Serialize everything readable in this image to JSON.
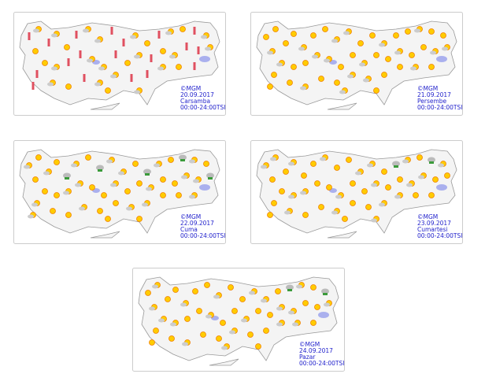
{
  "maps": [
    {
      "credit": "©MGM",
      "date": "20.09.2017",
      "day": "Carsamba",
      "hours": "00:00-24:00TSI"
    },
    {
      "credit": "©MGM",
      "date": "21.09.2017",
      "day": "Persembe",
      "hours": "00:00-24:00TSI"
    },
    {
      "credit": "©MGM",
      "date": "22.09.2017",
      "day": "Cuma",
      "hours": "00:00-24:00TSI"
    },
    {
      "credit": "©MGM",
      "date": "23.09.2017",
      "day": "Cumartesi",
      "hours": "00:00-24:00TSI"
    },
    {
      "credit": "©MGM",
      "date": "24.09.2017",
      "day": "Pazar",
      "hours": "00:00-24:00TSI"
    }
  ]
}
